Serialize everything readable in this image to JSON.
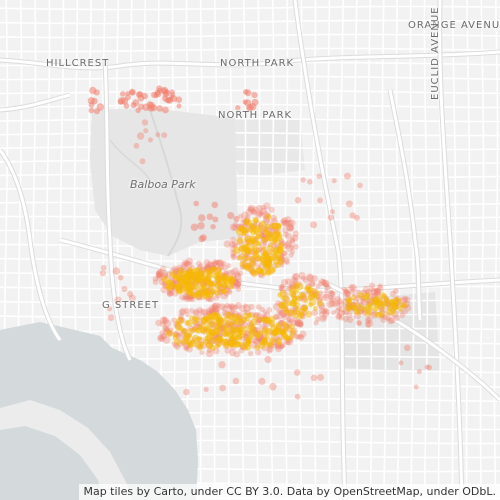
{
  "map": {
    "labels": {
      "hillcrest": "HILLCREST",
      "north_park_top": "NORTH PARK",
      "north_park_mid": "NORTH PARK",
      "orange_avenue": "ORANGE AVENUE",
      "euclid_avenue": "EUCLID AVENUE",
      "g_street": "G STREET",
      "balboa_park": "Balboa Park"
    },
    "attribution": "Map tiles by Carto, under CC BY 3.0. Data by OpenStreetMap, under ODbL.",
    "colors": {
      "land": "#f2f2f2",
      "water": "#d4dadc",
      "park": "#e6e6e6",
      "street": "#ffffff",
      "dense_point": "#f5b800",
      "sparse_point": "#f08070"
    }
  }
}
